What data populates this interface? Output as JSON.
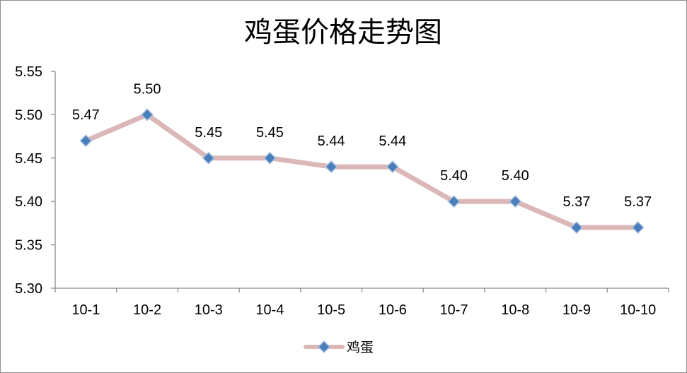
{
  "chart_data": {
    "type": "line",
    "title": "鸡蛋价格走势图",
    "categories": [
      "10-1",
      "10-2",
      "10-3",
      "10-4",
      "10-5",
      "10-6",
      "10-7",
      "10-8",
      "10-9",
      "10-10"
    ],
    "series": [
      {
        "name": "鸡蛋",
        "values": [
          5.47,
          5.5,
          5.45,
          5.45,
          5.44,
          5.44,
          5.4,
          5.4,
          5.37,
          5.37
        ],
        "marker_color": "#4a7ebb",
        "line_color": "#dbb8b7"
      }
    ],
    "ylim": [
      5.3,
      5.55
    ],
    "yticks": [
      5.3,
      5.35,
      5.4,
      5.45,
      5.5,
      5.55
    ],
    "grid": false,
    "data_labels": true,
    "legend": "bottom"
  }
}
